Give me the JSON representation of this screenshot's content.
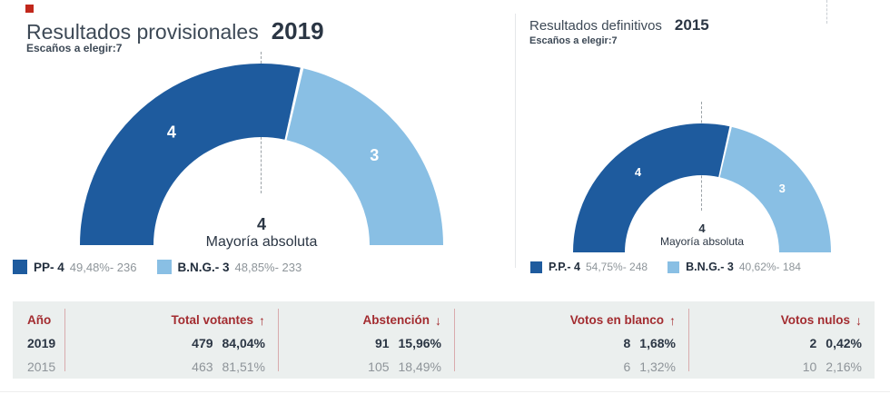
{
  "page": {
    "marker_color": "#c1271b"
  },
  "panels": [
    {
      "title": "Resultados provisionales",
      "year": "2019",
      "seats_label": "Escaños a elegir:",
      "seats_value": "7",
      "majority_value": "4",
      "majority_label": "Mayoría absoluta",
      "legend": [
        {
          "name": "PP- 4",
          "detail": "49,48%- 236",
          "color": "#1e5b9e"
        },
        {
          "name": "B.N.G.- 3",
          "detail": "48,85%- 233",
          "color": "#89bfe4"
        }
      ]
    },
    {
      "title": "Resultados definitivos",
      "year": "2015",
      "seats_label": "Escaños a elegir:",
      "seats_value": "7",
      "majority_value": "4",
      "majority_label": "Mayoría absoluta",
      "legend": [
        {
          "name": "P.P.- 4",
          "detail": "54,75%- 248",
          "color": "#1e5b9e"
        },
        {
          "name": "B.N.G.- 3",
          "detail": "40,62%- 184",
          "color": "#89bfe4"
        }
      ]
    }
  ],
  "chart_data": [
    {
      "type": "pie",
      "variant": "semicircle_donut",
      "title": "Resultados provisionales 2019",
      "seats_to_elect": 7,
      "categories": [
        "PP",
        "B.N.G."
      ],
      "values": [
        4,
        3
      ],
      "colors": [
        "#1e5b9e",
        "#89bfe4"
      ],
      "percent_labels": [
        "49,48%",
        "48,85%"
      ],
      "votes": [
        236,
        233
      ],
      "majority_annotation": "4 Mayoría absoluta"
    },
    {
      "type": "pie",
      "variant": "semicircle_donut",
      "title": "Resultados definitivos 2015",
      "seats_to_elect": 7,
      "categories": [
        "P.P.",
        "B.N.G."
      ],
      "values": [
        4,
        3
      ],
      "colors": [
        "#1e5b9e",
        "#89bfe4"
      ],
      "percent_labels": [
        "54,75%",
        "40,62%"
      ],
      "votes": [
        248,
        184
      ],
      "majority_annotation": "4 Mayoría absoluta"
    }
  ],
  "table": {
    "columns": [
      {
        "label": "Año",
        "arrow": ""
      },
      {
        "label": "Total votantes",
        "arrow": "↑"
      },
      {
        "label": "Abstención",
        "arrow": "↓"
      },
      {
        "label": "Votos en blanco",
        "arrow": "↑"
      },
      {
        "label": "Votos nulos",
        "arrow": "↓"
      }
    ],
    "rows": [
      {
        "year": "2019",
        "current": true,
        "values": [
          [
            "479",
            "84,04%"
          ],
          [
            "91",
            "15,96%"
          ],
          [
            "8",
            "1,68%"
          ],
          [
            "2",
            "0,42%"
          ]
        ]
      },
      {
        "year": "2015",
        "current": false,
        "values": [
          [
            "463",
            "81,51%"
          ],
          [
            "105",
            "18,49%"
          ],
          [
            "6",
            "1,32%"
          ],
          [
            "10",
            "2,16%"
          ]
        ]
      }
    ]
  }
}
